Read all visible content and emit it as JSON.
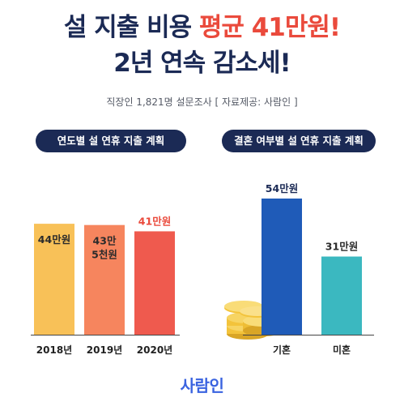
{
  "headline": {
    "line1_prefix": "설 지출 비용 ",
    "line1_accent": "평균 41만원!",
    "line2": "2년 연속 감소세!"
  },
  "source_note": "직장인 1,821명 설문조사 [ 자료제공: 사람인 ]",
  "brand": "사람인",
  "colors": {
    "navy": "#1b2a55",
    "accent_red": "#ea4a3c",
    "bar_2018": "#f8c158",
    "bar_2019": "#f6855e",
    "bar_2020": "#ef5a4e",
    "bar_married": "#1f5bb8",
    "bar_single": "#3bb8c0",
    "coin": "#f3c33b"
  },
  "chart_data": [
    {
      "type": "bar",
      "title": "연도별 설 연휴 지출 계획",
      "categories": [
        "2018년",
        "2019년",
        "2020년"
      ],
      "values": [
        44,
        43.5,
        41
      ],
      "value_labels": [
        "44만원",
        "43만\n5천원",
        "41만원"
      ],
      "ylim": [
        0,
        60
      ]
    },
    {
      "type": "bar",
      "title": "결혼 여부별 설 연휴 지출 계획",
      "categories": [
        "기혼",
        "미혼"
      ],
      "values": [
        54,
        31
      ],
      "value_labels": [
        "54만원",
        "31만원"
      ],
      "ylim": [
        0,
        60
      ]
    }
  ]
}
